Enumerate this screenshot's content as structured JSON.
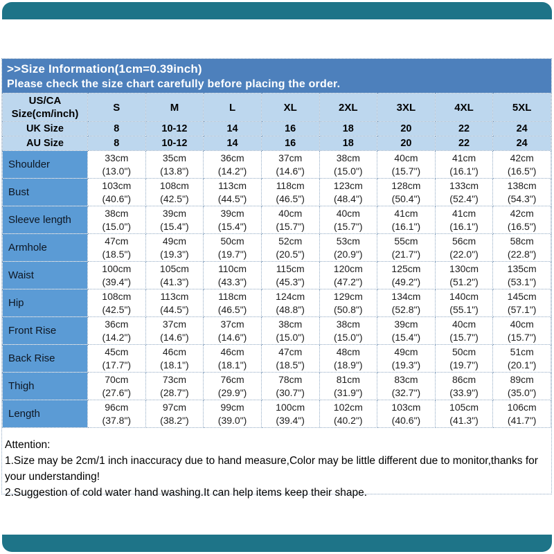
{
  "colors": {
    "teal_band": "#1e7488",
    "banner_bg": "#4d80bc",
    "banner_text": "#ffffff",
    "header_bg": "#bdd7ee",
    "label_col_bg": "#5b9bd5",
    "grid_dotted": "#8fa8c2"
  },
  "banner": {
    "line1": ">>Size Information(1cm=0.39inch)",
    "line2": "Please check the size chart carefully before placing the order."
  },
  "table": {
    "corner_line1": "US/CA",
    "corner_line2": "Size(cm/inch)",
    "size_columns": [
      "S",
      "M",
      "L",
      "XL",
      "2XL",
      "3XL",
      "4XL",
      "5XL"
    ],
    "uk_row": {
      "label": "UK Size",
      "values": [
        "8",
        "10-12",
        "14",
        "16",
        "18",
        "20",
        "22",
        "24"
      ]
    },
    "au_row": {
      "label": "AU Size",
      "values": [
        "8",
        "10-12",
        "14",
        "16",
        "18",
        "20",
        "22",
        "24"
      ]
    },
    "measurement_rows": [
      {
        "label": "Shoulder",
        "cells": [
          {
            "cm": "33cm",
            "in": "(13.0\")"
          },
          {
            "cm": "35cm",
            "in": "(13.8\")"
          },
          {
            "cm": "36cm",
            "in": "(14.2\")"
          },
          {
            "cm": "37cm",
            "in": "(14.6\")"
          },
          {
            "cm": "38cm",
            "in": "(15.0\")"
          },
          {
            "cm": "40cm",
            "in": "(15.7\")"
          },
          {
            "cm": "41cm",
            "in": "(16.1\")"
          },
          {
            "cm": "42cm",
            "in": "(16.5\")"
          }
        ]
      },
      {
        "label": "Bust",
        "cells": [
          {
            "cm": "103cm",
            "in": "(40.6\")"
          },
          {
            "cm": "108cm",
            "in": "(42.5\")"
          },
          {
            "cm": "113cm",
            "in": "(44.5\")"
          },
          {
            "cm": "118cm",
            "in": "(46.5\")"
          },
          {
            "cm": "123cm",
            "in": "(48.4\")"
          },
          {
            "cm": "128cm",
            "in": "(50.4\")"
          },
          {
            "cm": "133cm",
            "in": "(52.4\")"
          },
          {
            "cm": "138cm",
            "in": "(54.3\")"
          }
        ]
      },
      {
        "label": "Sleeve length",
        "cells": [
          {
            "cm": "38cm",
            "in": "(15.0\")"
          },
          {
            "cm": "39cm",
            "in": "(15.4\")"
          },
          {
            "cm": "39cm",
            "in": "(15.4\")"
          },
          {
            "cm": "40cm",
            "in": "(15.7\")"
          },
          {
            "cm": "40cm",
            "in": "(15.7\")"
          },
          {
            "cm": "41cm",
            "in": "(16.1\")"
          },
          {
            "cm": "41cm",
            "in": "(16.1\")"
          },
          {
            "cm": "42cm",
            "in": "(16.5\")"
          }
        ]
      },
      {
        "label": "Armhole",
        "cells": [
          {
            "cm": "47cm",
            "in": "(18.5\")"
          },
          {
            "cm": "49cm",
            "in": "(19.3\")"
          },
          {
            "cm": "50cm",
            "in": "(19.7\")"
          },
          {
            "cm": "52cm",
            "in": "(20.5\")"
          },
          {
            "cm": "53cm",
            "in": "(20.9\")"
          },
          {
            "cm": "55cm",
            "in": "(21.7\")"
          },
          {
            "cm": "56cm",
            "in": "(22.0\")"
          },
          {
            "cm": "58cm",
            "in": "(22.8\")"
          }
        ]
      },
      {
        "label": "Waist",
        "cells": [
          {
            "cm": "100cm",
            "in": "(39.4\")"
          },
          {
            "cm": "105cm",
            "in": "(41.3\")"
          },
          {
            "cm": "110cm",
            "in": "(43.3\")"
          },
          {
            "cm": "115cm",
            "in": "(45.3\")"
          },
          {
            "cm": "120cm",
            "in": "(47.2\")"
          },
          {
            "cm": "125cm",
            "in": "(49.2\")"
          },
          {
            "cm": "130cm",
            "in": "(51.2\")"
          },
          {
            "cm": "135cm",
            "in": "(53.1\")"
          }
        ]
      },
      {
        "label": "Hip",
        "cells": [
          {
            "cm": "108cm",
            "in": "(42.5\")"
          },
          {
            "cm": "113cm",
            "in": "(44.5\")"
          },
          {
            "cm": "118cm",
            "in": "(46.5\")"
          },
          {
            "cm": "124cm",
            "in": "(48.8\")"
          },
          {
            "cm": "129cm",
            "in": "(50.8\")"
          },
          {
            "cm": "134cm",
            "in": "(52.8\")"
          },
          {
            "cm": "140cm",
            "in": "(55.1\")"
          },
          {
            "cm": "145cm",
            "in": "(57.1\")"
          }
        ]
      },
      {
        "label": "Front Rise",
        "cells": [
          {
            "cm": "36cm",
            "in": "(14.2\")"
          },
          {
            "cm": "37cm",
            "in": "(14.6\")"
          },
          {
            "cm": "37cm",
            "in": "(14.6\")"
          },
          {
            "cm": "38cm",
            "in": "(15.0\")"
          },
          {
            "cm": "38cm",
            "in": "(15.0\")"
          },
          {
            "cm": "39cm",
            "in": "(15.4\")"
          },
          {
            "cm": "40cm",
            "in": "(15.7\")"
          },
          {
            "cm": "40cm",
            "in": "(15.7\")"
          }
        ]
      },
      {
        "label": "Back Rise",
        "cells": [
          {
            "cm": "45cm",
            "in": "(17.7\")"
          },
          {
            "cm": "46cm",
            "in": "(18.1\")"
          },
          {
            "cm": "46cm",
            "in": "(18.1\")"
          },
          {
            "cm": "47cm",
            "in": "(18.5\")"
          },
          {
            "cm": "48cm",
            "in": "(18.9\")"
          },
          {
            "cm": "49cm",
            "in": "(19.3\")"
          },
          {
            "cm": "50cm",
            "in": "(19.7\")"
          },
          {
            "cm": "51cm",
            "in": "(20.1\")"
          }
        ]
      },
      {
        "label": "Thigh",
        "cells": [
          {
            "cm": "70cm",
            "in": "(27.6\")"
          },
          {
            "cm": "73cm",
            "in": "(28.7\")"
          },
          {
            "cm": "76cm",
            "in": "(29.9\")"
          },
          {
            "cm": "78cm",
            "in": "(30.7\")"
          },
          {
            "cm": "81cm",
            "in": "(31.9\")"
          },
          {
            "cm": "83cm",
            "in": "(32.7\")"
          },
          {
            "cm": "86cm",
            "in": "(33.9\")"
          },
          {
            "cm": "89cm",
            "in": "(35.0\")"
          }
        ]
      },
      {
        "label": "Length",
        "cells": [
          {
            "cm": "96cm",
            "in": "(37.8\")"
          },
          {
            "cm": "97cm",
            "in": "(38.2\")"
          },
          {
            "cm": "99cm",
            "in": "(39.0\")"
          },
          {
            "cm": "100cm",
            "in": "(39.4\")"
          },
          {
            "cm": "102cm",
            "in": "(40.2\")"
          },
          {
            "cm": "103cm",
            "in": "(40.6\")"
          },
          {
            "cm": "105cm",
            "in": "(41.3\")"
          },
          {
            "cm": "106cm",
            "in": "(41.7\")"
          }
        ]
      }
    ]
  },
  "attention": {
    "title": "Attention:",
    "line1": "1.Size may be 2cm/1 inch inaccuracy due to hand measure,Color may be little different due to monitor,thanks for your understanding!",
    "line2": "2.Suggestion of cold water hand washing.It can help items keep their shape."
  }
}
